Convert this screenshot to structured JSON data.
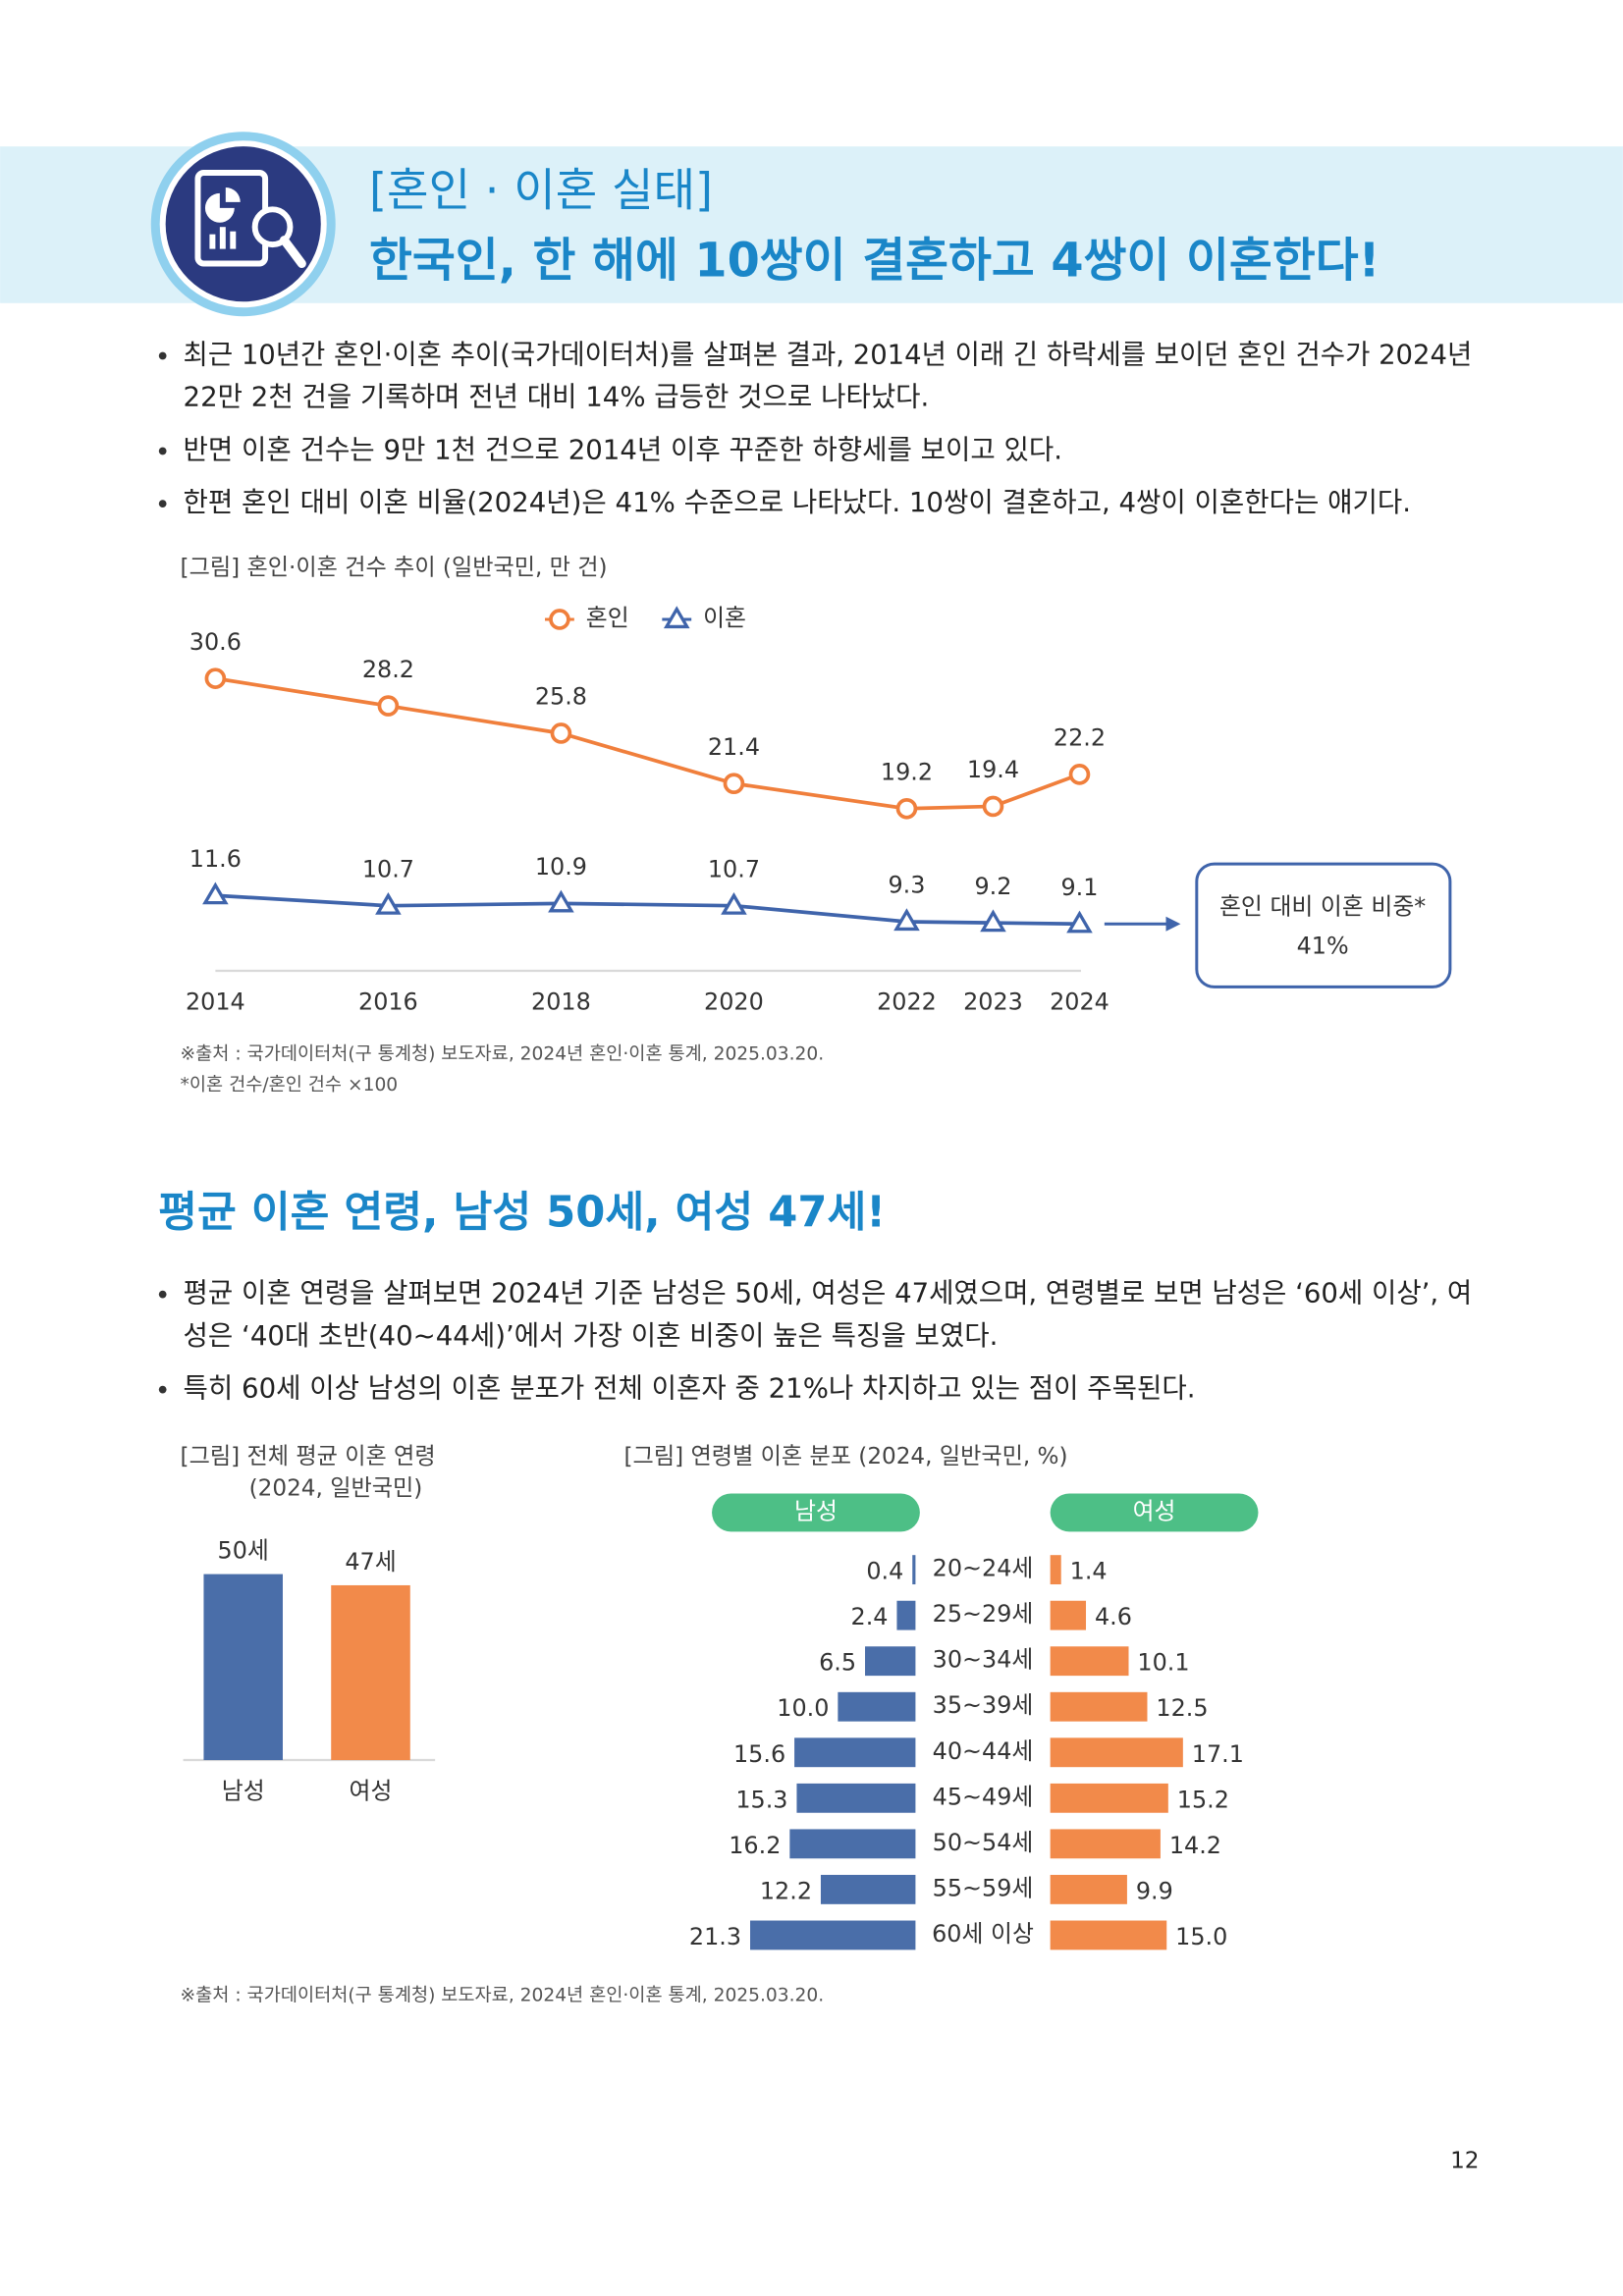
{
  "header": {
    "kicker": "[혼인 · 이혼 실태]",
    "title": "한국인, 한 해에 10쌍이 결혼하고 4쌍이 이혼한다!"
  },
  "section1": {
    "bullets": [
      [
        "최근 10년간 혼인·이혼 추이(국가데이터처)를 살펴본 결과, 2014년 이래 긴 하락세를 보이던 혼인 건수가 2024년",
        "22만 2천 건을 기록하며 전년 대비 14% 급등한 것으로 나타났다."
      ],
      [
        "반면 이혼 건수는 9만 1천 건으로 2014년 이후 꾸준한 하향세를 보이고 있다."
      ],
      [
        "한편 혼인 대비 이혼 비율(2024년)은 41% 수준으로 나타났다. 10쌍이 결혼하고, 4쌍이 이혼한다는 얘기다."
      ]
    ],
    "notes": [
      "※출처 : 국가데이터처(구 통계청) 보도자료, 2024년 혼인·이혼 통계, 2025.03.20.",
      "*이혼 건수/혼인 건수 ×100"
    ]
  },
  "section2": {
    "title": "평균 이혼 연령, 남성 50세, 여성 47세!",
    "bullets": [
      [
        "평균 이혼 연령을 살펴보면 2024년 기준 남성은 50세, 여성은 47세였으며, 연령별로 보면 남성은 ‘60세 이상’, 여",
        "성은 ‘40대 초반(40~44세)’에서 가장 이혼 비중이 높은 특징을 보였다."
      ],
      [
        "특히 60세 이상 남성의 이혼 분포가 전체 이혼자 중 21%나 차지하고 있는 점이 주목된다."
      ]
    ],
    "notes": [
      "※출처 : 국가데이터처(구 통계청) 보도자료, 2024년 혼인·이혼 통계, 2025.03.20."
    ]
  },
  "chart_data": [
    {
      "type": "line",
      "title": "[그림] 혼인·이혼 건수 추이 (일반국민, 만 건)",
      "x": [
        2014,
        2016,
        2018,
        2020,
        2022,
        2023,
        2024
      ],
      "series": [
        {
          "name": "혼인",
          "color": "#f07f3c",
          "marker": "circle",
          "values": [
            30.6,
            28.2,
            25.8,
            21.4,
            19.2,
            19.4,
            22.2
          ]
        },
        {
          "name": "이혼",
          "color": "#3f64ab",
          "marker": "triangle",
          "values": [
            11.6,
            10.7,
            10.9,
            10.7,
            9.3,
            9.2,
            9.1
          ]
        }
      ],
      "annotation": [
        "혼인 대비 이혼 비중*",
        "41%"
      ]
    },
    {
      "type": "bar",
      "title": [
        "[그림] 전체 평균 이혼 연령",
        "(2024, 일반국민)"
      ],
      "categories": [
        "남성",
        "여성"
      ],
      "values": [
        50,
        47
      ],
      "value_labels": [
        "50세",
        "47세"
      ],
      "colors": [
        "#4a6ea9",
        "#f28a4a"
      ]
    },
    {
      "type": "butterfly",
      "title": "[그림] 연령별 이혼 분포 (2024, 일반국민, %)",
      "categories": [
        "20~24세",
        "25~29세",
        "30~34세",
        "35~39세",
        "40~44세",
        "45~49세",
        "50~54세",
        "55~59세",
        "60세 이상"
      ],
      "series": [
        {
          "name": "남성",
          "color": "#4a6ea9",
          "values": [
            0.4,
            2.4,
            6.5,
            10.0,
            15.6,
            15.3,
            16.2,
            12.2,
            21.3
          ],
          "value_labels": [
            "0.4",
            "2.4",
            "6.5",
            "10.0",
            "15.6",
            "15.3",
            "16.2",
            "12.2",
            "21.3"
          ]
        },
        {
          "name": "여성",
          "color": "#f28a4a",
          "values": [
            1.4,
            4.6,
            10.1,
            12.5,
            17.1,
            15.2,
            14.2,
            9.9,
            15.0
          ],
          "value_labels": [
            "1.4",
            "4.6",
            "10.1",
            "12.5",
            "17.1",
            "15.2",
            "14.2",
            "9.9",
            "15.0"
          ]
        }
      ],
      "legend_color": "#4dbf86"
    }
  ],
  "page_number": "12"
}
